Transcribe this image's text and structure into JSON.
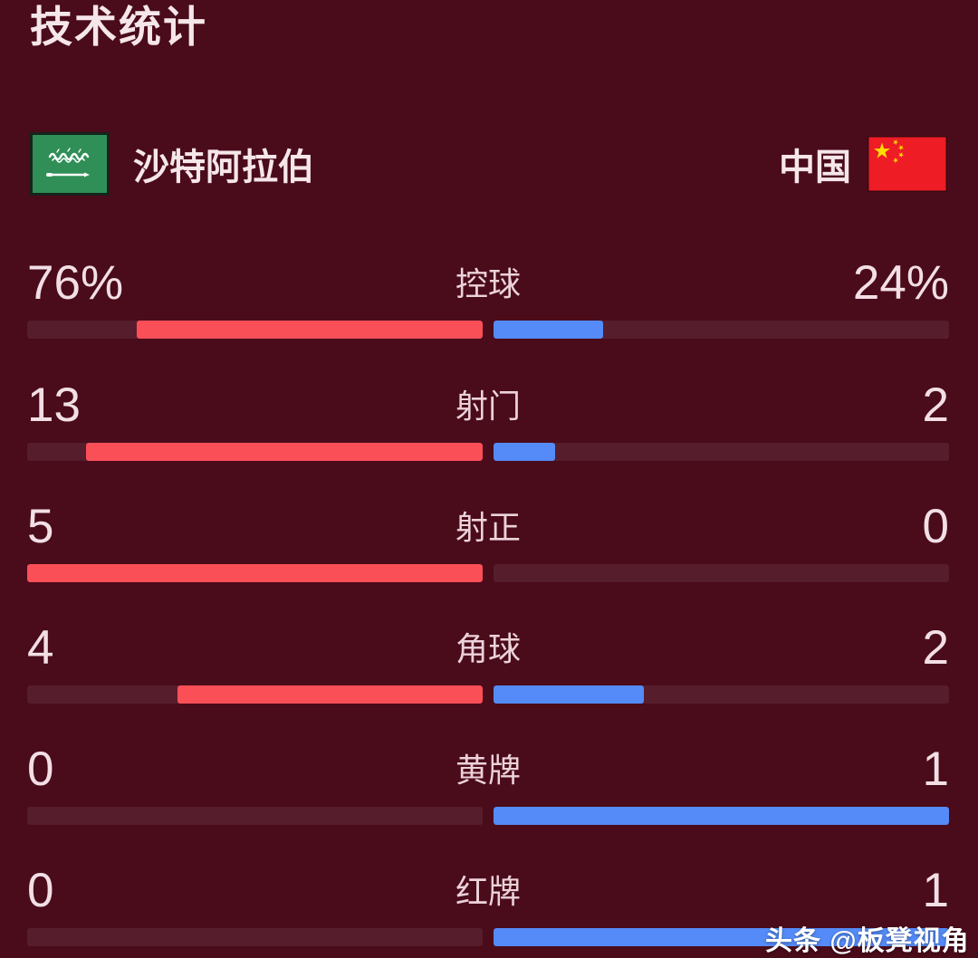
{
  "title": "技术统计",
  "teams": {
    "home": {
      "name": "沙特阿拉伯",
      "flag_icon": "saudi-arabia-flag"
    },
    "away": {
      "name": "中国",
      "flag_icon": "china-flag"
    }
  },
  "rows": [
    {
      "label": "控球",
      "home_value": "76%",
      "away_value": "24%",
      "home_fill_pct": 76,
      "away_fill_pct": 24
    },
    {
      "label": "射门",
      "home_value": "13",
      "away_value": "2",
      "home_fill_pct": 87,
      "away_fill_pct": 13.5
    },
    {
      "label": "射正",
      "home_value": "5",
      "away_value": "0",
      "home_fill_pct": 100,
      "away_fill_pct": 0
    },
    {
      "label": "角球",
      "home_value": "4",
      "away_value": "2",
      "home_fill_pct": 67,
      "away_fill_pct": 33
    },
    {
      "label": "黄牌",
      "home_value": "0",
      "away_value": "1",
      "home_fill_pct": 0,
      "away_fill_pct": 100
    },
    {
      "label": "红牌",
      "home_value": "0",
      "away_value": "1",
      "home_fill_pct": 0,
      "away_fill_pct": 100
    }
  ],
  "watermark": "头条 @板凳视角",
  "colors": {
    "background": "#4a0b1b",
    "bar_track": "#561d2d",
    "home_bar_red": "#fb4f58",
    "away_bar_blue": "#548bf8",
    "home_flag_green": "#2f8f57",
    "away_flag_red": "#ee1c25",
    "star_yellow": "#ffde00",
    "text": "#f2dfe5"
  },
  "chart_data": {
    "type": "bar",
    "title": "技术统计",
    "orientation": "horizontal-paired",
    "bar_fill_direction": "from-center-outward",
    "value_labels_position": "outer-edges",
    "categories": [
      "控球",
      "射门",
      "射正",
      "角球",
      "黄牌",
      "红牌"
    ],
    "series": [
      {
        "name": "沙特阿拉伯",
        "color": "#fb4f58",
        "values": [
          76,
          13,
          5,
          4,
          0,
          0
        ],
        "display_values": [
          "76%",
          "13",
          "5",
          "4",
          "0",
          "0"
        ]
      },
      {
        "name": "中国",
        "color": "#548bf8",
        "values": [
          24,
          2,
          0,
          2,
          1,
          1
        ],
        "display_values": [
          "24%",
          "2",
          "0",
          "2",
          "1",
          "1"
        ]
      }
    ]
  }
}
